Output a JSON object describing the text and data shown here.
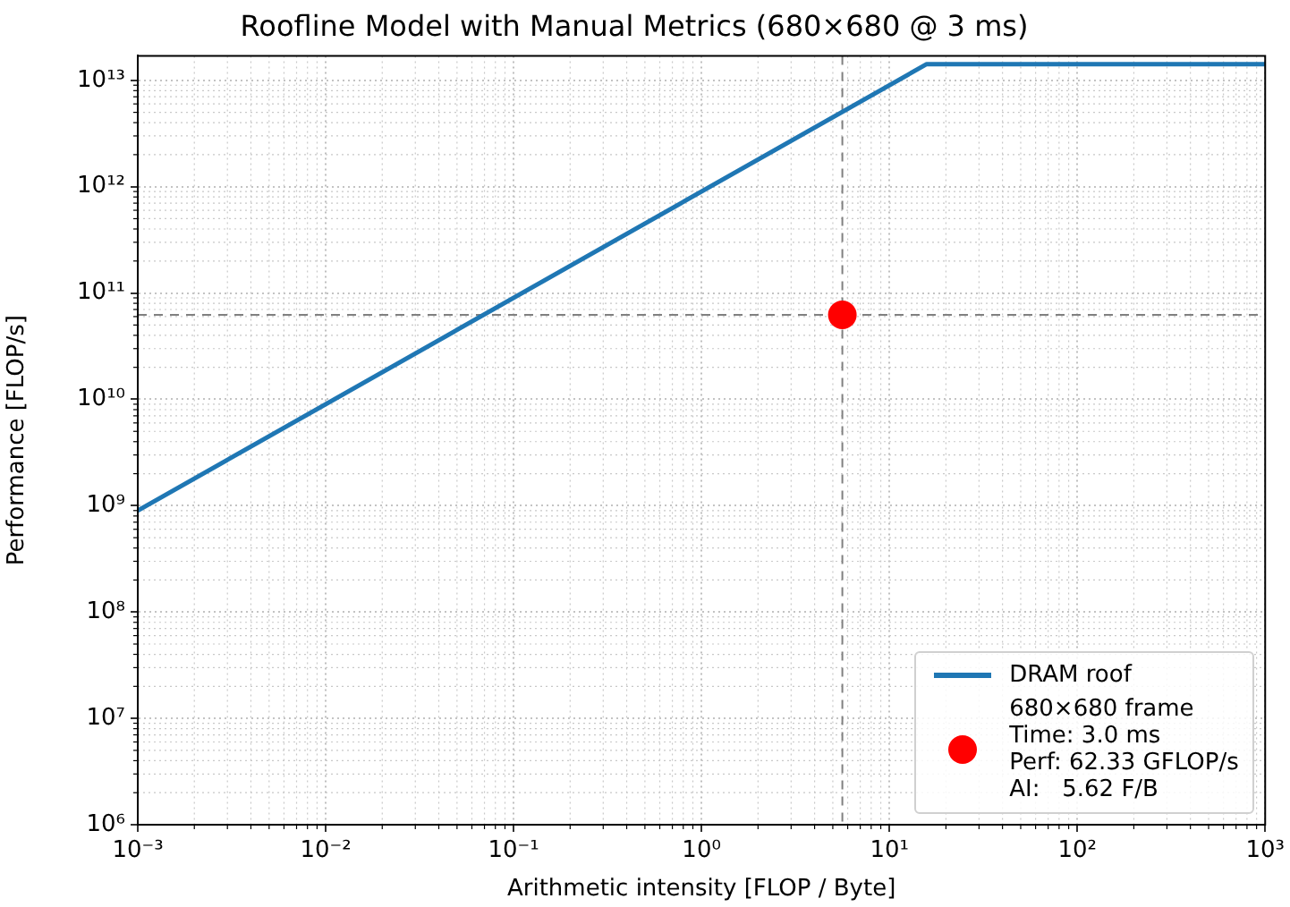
{
  "chart_data": {
    "type": "line",
    "title": "Roofline Model with Manual Metrics (680×680 @ 3 ms)",
    "xlabel": "Arithmetic intensity [FLOP / Byte]",
    "ylabel": "Performance [FLOP/s]",
    "log": "xy",
    "grid": true,
    "legend": "bottom right",
    "xlim": [
      0.001,
      1000
    ],
    "ylim": [
      1000000,
      17000000000000
    ],
    "xticks": [
      {
        "value": 0.001,
        "label": "10⁻³"
      },
      {
        "value": 0.01,
        "label": "10⁻²"
      },
      {
        "value": 0.1,
        "label": "10⁻¹"
      },
      {
        "value": 1,
        "label": "10⁰"
      },
      {
        "value": 10,
        "label": "10¹"
      },
      {
        "value": 100,
        "label": "10²"
      },
      {
        "value": 1000,
        "label": "10³"
      }
    ],
    "yticks": [
      {
        "value": 1000000,
        "label": "10⁶"
      },
      {
        "value": 10000000,
        "label": "10⁷"
      },
      {
        "value": 100000000,
        "label": "10⁸"
      },
      {
        "value": 1000000000,
        "label": "10⁹"
      },
      {
        "value": 10000000000,
        "label": "10¹⁰"
      },
      {
        "value": 100000000000,
        "label": "10¹¹"
      },
      {
        "value": 1000000000000,
        "label": "10¹²"
      },
      {
        "value": 10000000000000,
        "label": "10¹³"
      }
    ],
    "series": [
      {
        "name": "DRAM roof",
        "color": "#1f77b4",
        "marker": "none",
        "x": [
          0.001,
          15.8,
          1000
        ],
        "values": [
          900000000,
          14200000000000,
          14200000000000
        ]
      },
      {
        "type": "scatter",
        "name": "680×680 frame\nTime: 3.0 ms\nPerf: 62.33 GFLOP/s\nAI:   5.62 F/B",
        "color": "#ff0000",
        "marker": "circle",
        "x": [
          5.62
        ],
        "values": [
          62330000000
        ]
      }
    ],
    "ref_lines": [
      {
        "axis": "x",
        "value": 5.62,
        "color": "#808080",
        "line_style": "dashed"
      },
      {
        "axis": "y",
        "value": 62330000000,
        "color": "#808080",
        "line_style": "dashed"
      }
    ]
  }
}
